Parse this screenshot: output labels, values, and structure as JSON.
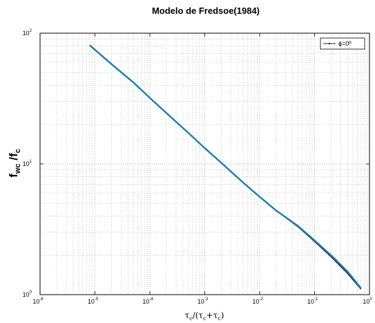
{
  "chart_data": {
    "type": "line",
    "title": "Modelo de Fredsoe(1984)",
    "xlabel": {
      "parts": [
        "τ",
        "c",
        "/(τ",
        "c",
        "+τ",
        "c",
        ")"
      ]
    },
    "ylabel": {
      "parts": [
        "f",
        "wc",
        " /f",
        "c"
      ]
    },
    "x_scale": "log",
    "y_scale": "log",
    "xlim": [
      1e-06,
      1
    ],
    "ylim": [
      1,
      100
    ],
    "x_ticks": [
      {
        "base": "10",
        "exp": "-6"
      },
      {
        "base": "10",
        "exp": "-5"
      },
      {
        "base": "10",
        "exp": "-4"
      },
      {
        "base": "10",
        "exp": "-3"
      },
      {
        "base": "10",
        "exp": "-2"
      },
      {
        "base": "10",
        "exp": "-1"
      },
      {
        "base": "10",
        "exp": "0"
      }
    ],
    "y_ticks": [
      {
        "base": "10",
        "exp": "0"
      },
      {
        "base": "10",
        "exp": "1"
      },
      {
        "base": "10",
        "exp": "2"
      }
    ],
    "grid": true,
    "legend": {
      "position": "top-right",
      "entries": [
        "ϕ=0º"
      ]
    },
    "series": [
      {
        "name": "ϕ=0º",
        "color": "#222222",
        "x": [
          8e-06,
          2e-05,
          5e-05,
          0.0001,
          0.0002,
          0.0005,
          0.001,
          0.002,
          0.005,
          0.01,
          0.02,
          0.05,
          0.1,
          0.2,
          0.4,
          0.7
        ],
        "y": [
          81,
          58,
          42,
          32,
          24.5,
          17.3,
          13.2,
          10.2,
          7.2,
          5.6,
          4.4,
          3.3,
          2.55,
          1.95,
          1.45,
          1.1
        ]
      },
      {
        "color": "#1a7fa8",
        "x": [
          8e-06,
          2e-05,
          5e-05,
          0.0001,
          0.0002,
          0.0005,
          0.001,
          0.002,
          0.005,
          0.01,
          0.02,
          0.05,
          0.1,
          0.2,
          0.4,
          0.7
        ],
        "y": [
          81,
          58,
          42,
          32,
          24.5,
          17.3,
          13.2,
          10.2,
          7.2,
          5.6,
          4.4,
          3.35,
          2.6,
          2.0,
          1.5,
          1.12
        ]
      }
    ]
  }
}
